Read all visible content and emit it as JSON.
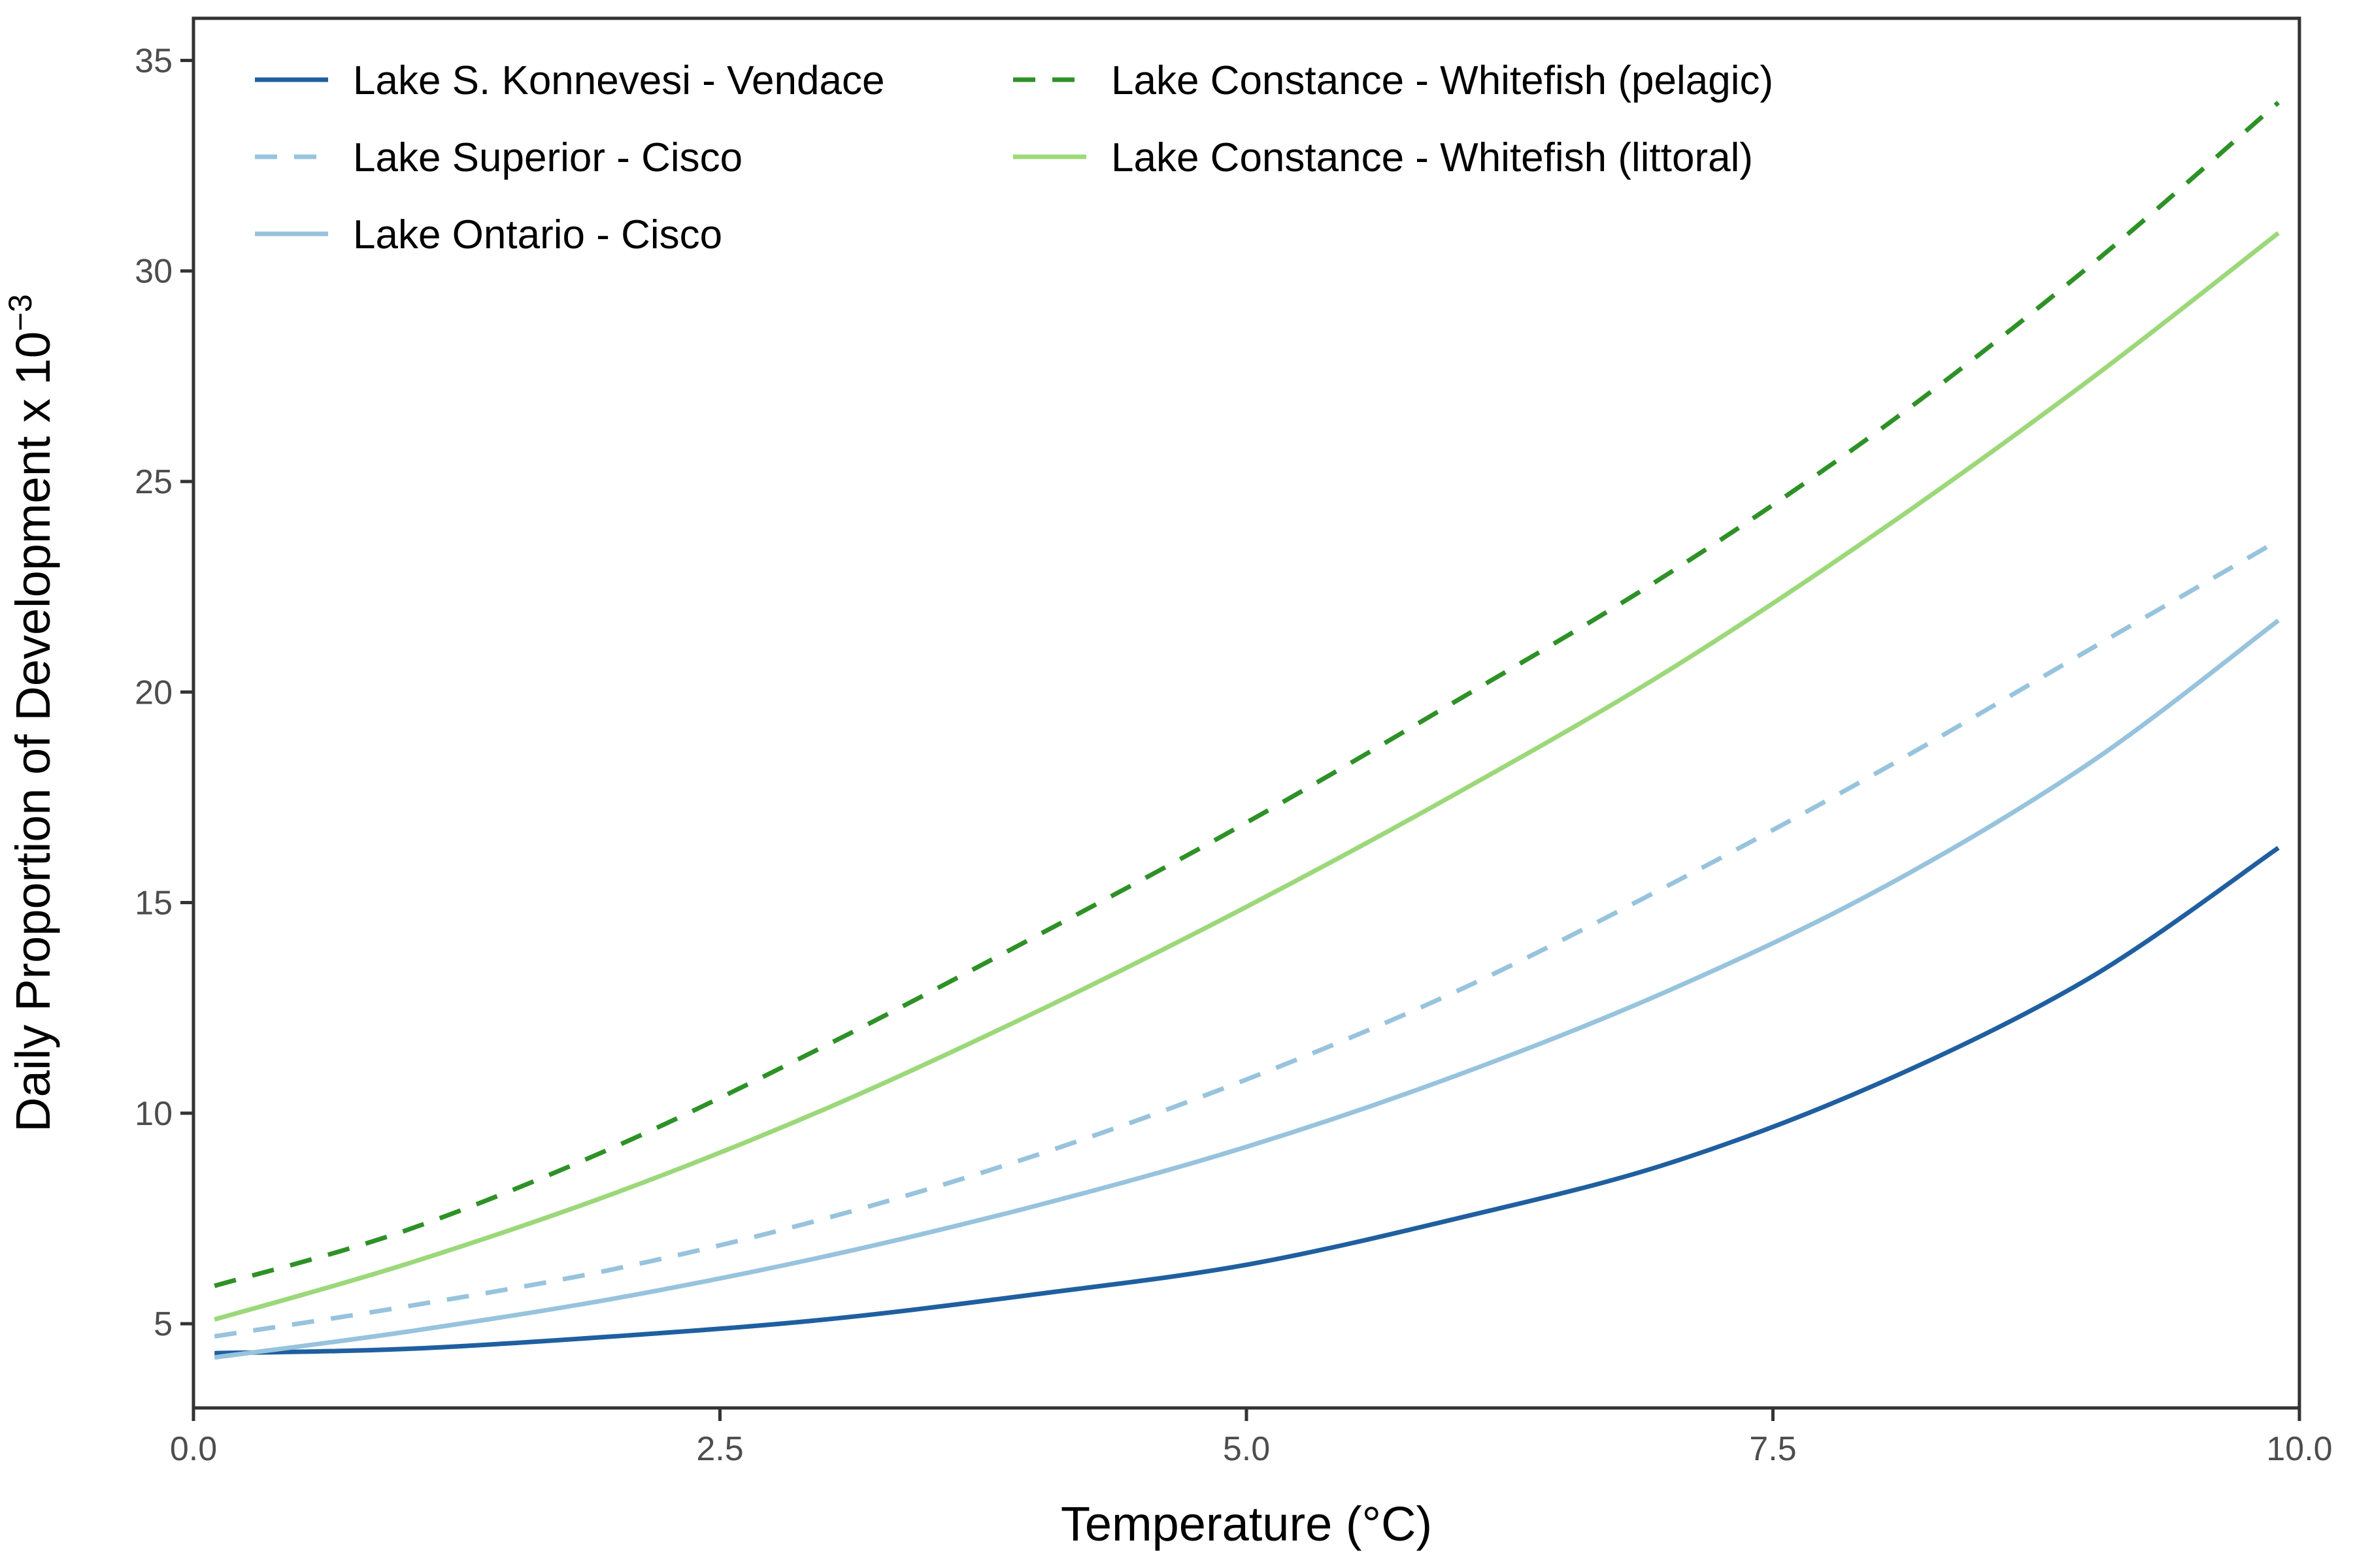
{
  "chart_data": {
    "type": "line",
    "xlabel": "Temperature (°C)",
    "ylabel_main": "Daily Proportion of Development x 10",
    "ylabel_exponent": "−3",
    "xlim": [
      0,
      10
    ],
    "ylim": [
      3,
      36
    ],
    "x_ticks": [
      0,
      2.5,
      5,
      7.5,
      10
    ],
    "x_tick_labels": [
      "0.0",
      "2.5",
      "5.0",
      "7.5",
      "10.0"
    ],
    "y_ticks": [
      5,
      10,
      15,
      20,
      25,
      30,
      35
    ],
    "y_tick_labels": [
      "5",
      "10",
      "15",
      "20",
      "25",
      "30",
      "35"
    ],
    "grid": false,
    "legend_position": "top-left",
    "series": [
      {
        "name": "Lake S. Konnevesi - Vendace",
        "color": "#1f5fa0",
        "dash": "solid",
        "x": [
          0.1,
          1,
          2,
          3,
          4,
          5,
          6,
          7,
          8,
          9,
          9.9
        ],
        "y": [
          4.3,
          4.4,
          4.7,
          5.1,
          5.7,
          6.4,
          7.5,
          8.8,
          10.7,
          13.2,
          16.3
        ]
      },
      {
        "name": "Lake Superior - Cisco",
        "color": "#97c3dd",
        "dash": "dashed",
        "x": [
          0.1,
          1,
          2,
          3,
          4,
          5,
          6,
          7,
          8,
          9,
          9.9
        ],
        "y": [
          4.7,
          5.4,
          6.3,
          7.5,
          9.0,
          10.8,
          12.9,
          15.4,
          18.1,
          21.0,
          23.6
        ]
      },
      {
        "name": "Lake Ontario - Cisco",
        "color": "#97c3dd",
        "dash": "solid",
        "x": [
          0.1,
          1,
          2,
          3,
          4,
          5,
          6,
          7,
          8,
          9,
          9.9
        ],
        "y": [
          4.2,
          4.8,
          5.6,
          6.6,
          7.8,
          9.2,
          10.9,
          12.9,
          15.3,
          18.3,
          21.7
        ]
      },
      {
        "name": "Lake Constance - Whitefish (pelagic)",
        "color": "#2e9127",
        "dash": "dashed",
        "x": [
          0.1,
          1,
          2,
          3,
          4,
          5,
          6,
          7,
          8,
          9,
          9.9
        ],
        "y": [
          5.9,
          7.2,
          9.2,
          11.6,
          14.2,
          16.9,
          19.8,
          22.8,
          26.2,
          30.1,
          34.0
        ]
      },
      {
        "name": "Lake Constance - Whitefish (littoral)",
        "color": "#9cd87a",
        "dash": "solid",
        "x": [
          0.1,
          1,
          2,
          3,
          4,
          5,
          6,
          7,
          8,
          9,
          9.9
        ],
        "y": [
          5.1,
          6.4,
          8.1,
          10.1,
          12.4,
          14.9,
          17.6,
          20.5,
          23.8,
          27.4,
          30.9
        ]
      }
    ]
  }
}
